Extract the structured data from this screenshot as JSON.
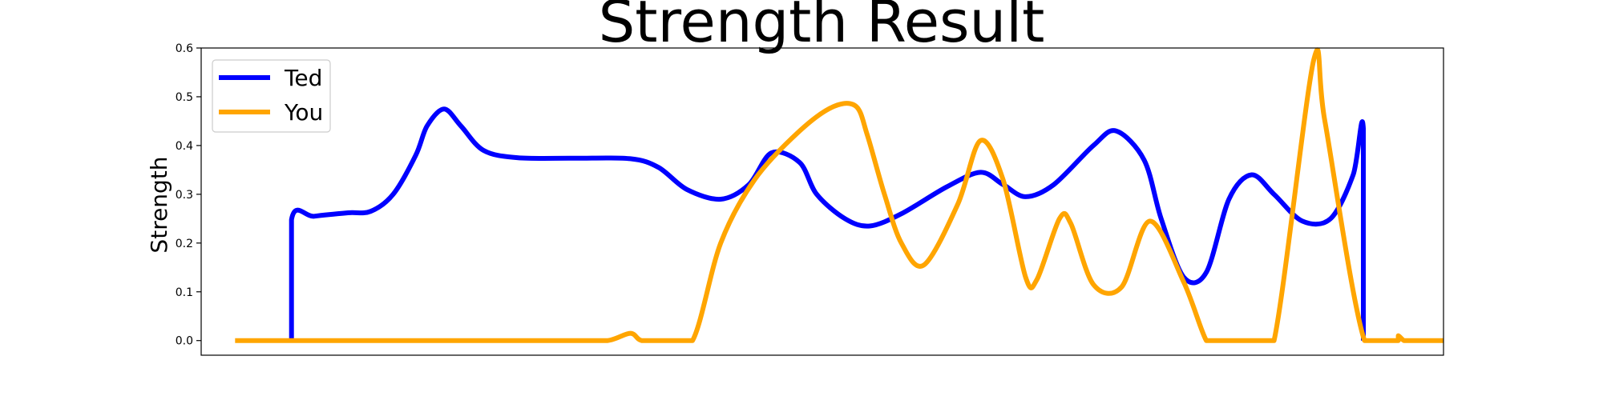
{
  "chart_data": {
    "type": "line",
    "title": "Strength Result",
    "xlabel": "",
    "ylabel": "Strength",
    "xlim": [
      -0.3,
      10.7
    ],
    "ylim": [
      -0.03,
      0.6
    ],
    "yticks": [
      0.0,
      0.1,
      0.2,
      0.3,
      0.4,
      0.5,
      0.6
    ],
    "ytick_labels": [
      "0.0",
      "0.1",
      "0.2",
      "0.3",
      "0.4",
      "0.5",
      "0.6"
    ],
    "grid": false,
    "legend_position": "upper-left",
    "series": [
      {
        "name": "Ted",
        "color": "#0000ff",
        "x": [
          0.5,
          0.5,
          0.7,
          1.0,
          1.2,
          1.4,
          1.6,
          1.7,
          1.85,
          2.0,
          2.2,
          2.5,
          3.0,
          3.5,
          3.75,
          4.0,
          4.3,
          4.55,
          4.75,
          5.0,
          5.15,
          5.4,
          5.62,
          5.9,
          6.3,
          6.6,
          6.8,
          7.0,
          7.25,
          7.6,
          7.8,
          8.05,
          8.2,
          8.4,
          8.6,
          8.8,
          9.0,
          9.2,
          9.45,
          9.7,
          9.9,
          9.99,
          9.99
        ],
        "y": [
          0.0,
          0.248,
          0.255,
          0.262,
          0.265,
          0.3,
          0.38,
          0.44,
          0.475,
          0.44,
          0.39,
          0.375,
          0.374,
          0.373,
          0.355,
          0.31,
          0.29,
          0.32,
          0.385,
          0.365,
          0.3,
          0.25,
          0.235,
          0.26,
          0.315,
          0.345,
          0.32,
          0.295,
          0.32,
          0.4,
          0.43,
          0.37,
          0.25,
          0.13,
          0.14,
          0.29,
          0.34,
          0.3,
          0.245,
          0.25,
          0.34,
          0.435,
          0.0
        ]
      },
      {
        "name": "You",
        "color": "#ffa500",
        "x": [
          0.0,
          0.5,
          1.0,
          2.0,
          3.0,
          3.3,
          3.5,
          3.6,
          3.8,
          4.05,
          4.3,
          4.6,
          5.0,
          5.3,
          5.5,
          5.6,
          5.75,
          5.9,
          6.1,
          6.4,
          6.6,
          6.8,
          7.0,
          7.1,
          7.3,
          7.4,
          7.6,
          7.85,
          8.1,
          8.4,
          8.6,
          8.7,
          8.85,
          9.0,
          9.2,
          9.55,
          9.65,
          10.0,
          10.3,
          10.3,
          10.35,
          10.4,
          10.7
        ],
        "y": [
          0.0,
          0.0,
          0.0,
          0.0,
          0.0,
          0.0,
          0.015,
          0.0,
          0.0,
          0.0,
          0.2,
          0.33,
          0.43,
          0.48,
          0.48,
          0.42,
          0.3,
          0.2,
          0.155,
          0.28,
          0.41,
          0.33,
          0.13,
          0.125,
          0.25,
          0.24,
          0.115,
          0.11,
          0.245,
          0.12,
          0.0,
          0.0,
          0.0,
          0.0,
          0.0,
          0.575,
          0.45,
          0.0,
          0.0,
          0.01,
          0.0,
          0.0,
          0.0
        ]
      }
    ]
  }
}
